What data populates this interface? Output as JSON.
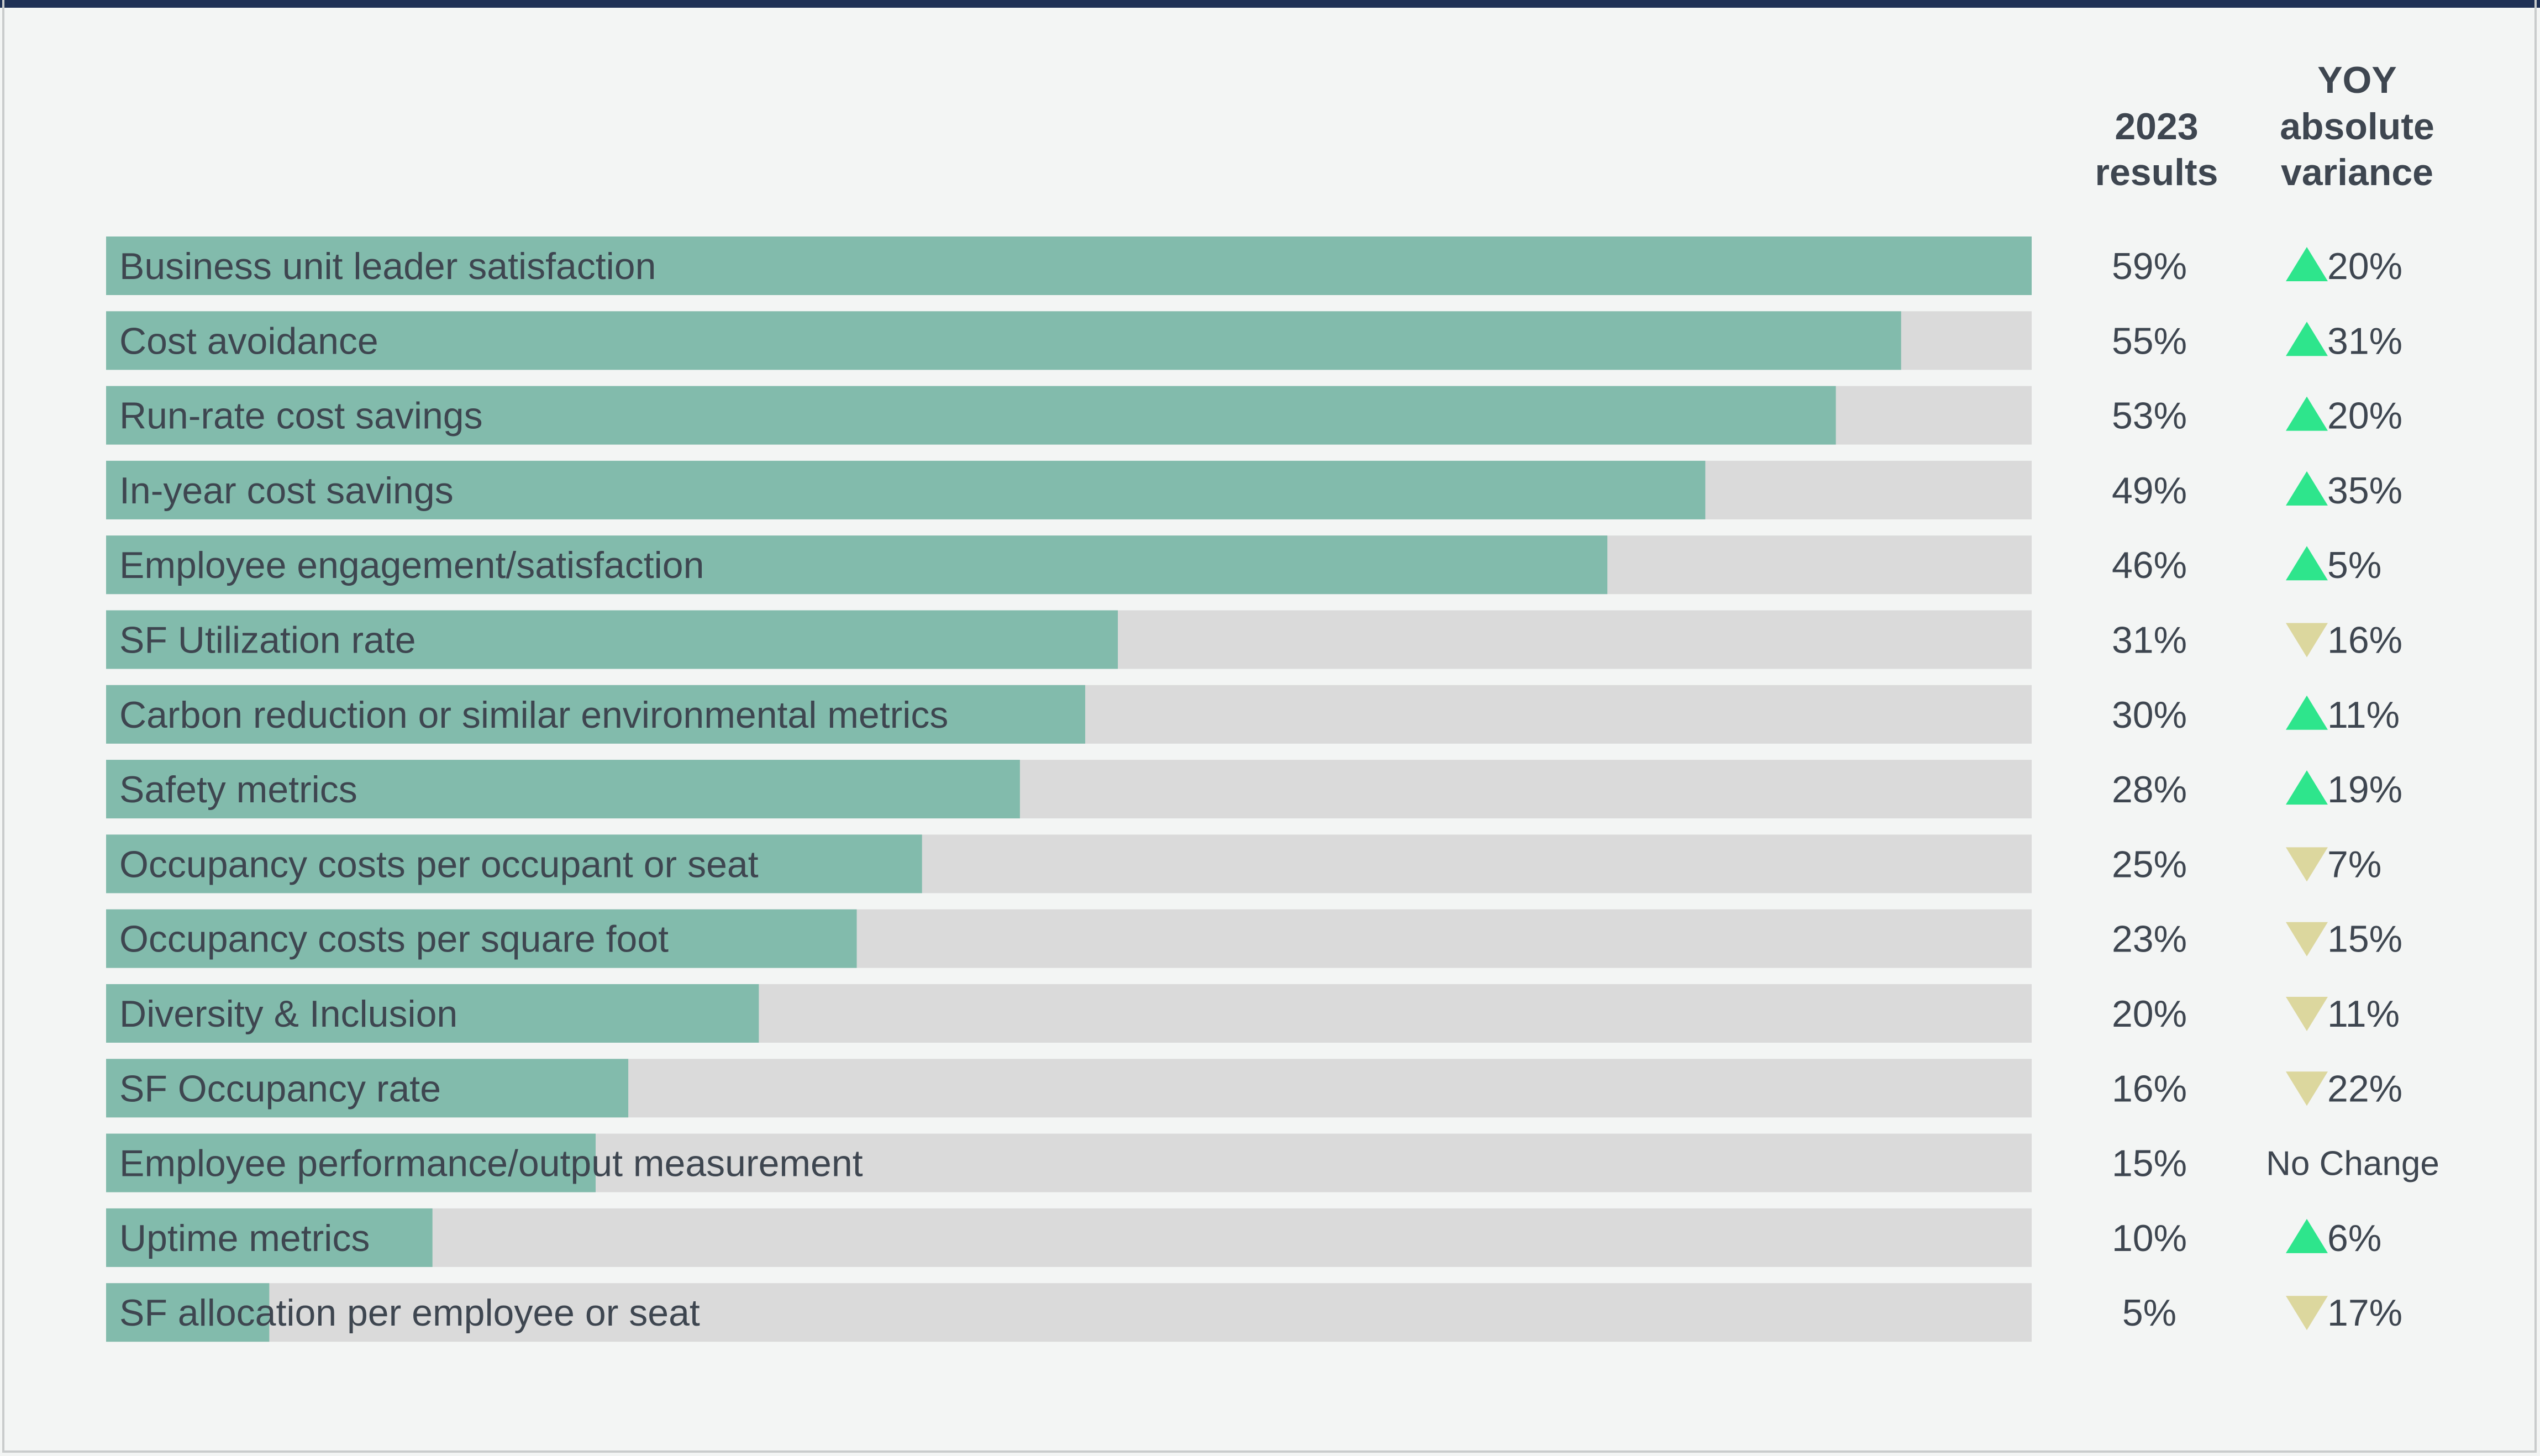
{
  "colors": {
    "bar_fill": "#82bbac",
    "bar_track": "#dadada",
    "up_arrow": "#2ee58c",
    "down_arrow": "#dcd79e",
    "top_rule": "#1f3155"
  },
  "chart_data": {
    "type": "bar",
    "orientation": "horizontal",
    "title": "",
    "columns": {
      "results_header": [
        "2023",
        "results"
      ],
      "variance_header": [
        "YOY",
        "absolute",
        "variance"
      ]
    },
    "xlim": [
      0,
      59
    ],
    "categories": [
      "Business unit leader satisfaction",
      "Cost avoidance",
      "Run-rate cost savings",
      "In-year cost savings",
      "Employee engagement/satisfaction",
      "SF Utilization rate",
      "Carbon reduction or similar environmental metrics",
      "Safety metrics",
      "Occupancy costs per occupant or seat",
      "Occupancy costs per square foot",
      "Diversity & Inclusion",
      "SF Occupancy rate",
      "Employee performance/output measurement",
      "Uptime metrics",
      "SF allocation per employee or seat"
    ],
    "values": [
      59,
      55,
      53,
      49,
      46,
      31,
      30,
      28,
      25,
      23,
      20,
      16,
      15,
      10,
      5
    ],
    "value_labels": [
      "59%",
      "55%",
      "53%",
      "49%",
      "46%",
      "31%",
      "30%",
      "28%",
      "25%",
      "23%",
      "20%",
      "16%",
      "15%",
      "10%",
      "5%"
    ],
    "variance": [
      {
        "direction": "up",
        "label": "20%"
      },
      {
        "direction": "up",
        "label": "31%"
      },
      {
        "direction": "up",
        "label": "20%"
      },
      {
        "direction": "up",
        "label": "35%"
      },
      {
        "direction": "up",
        "label": "5%"
      },
      {
        "direction": "down",
        "label": "16%"
      },
      {
        "direction": "up",
        "label": "11%"
      },
      {
        "direction": "up",
        "label": "19%"
      },
      {
        "direction": "down",
        "label": "7%"
      },
      {
        "direction": "down",
        "label": "15%"
      },
      {
        "direction": "down",
        "label": "11%"
      },
      {
        "direction": "down",
        "label": "22%"
      },
      {
        "direction": "none",
        "label": "No Change"
      },
      {
        "direction": "up",
        "label": "6%"
      },
      {
        "direction": "down",
        "label": "17%"
      }
    ]
  }
}
